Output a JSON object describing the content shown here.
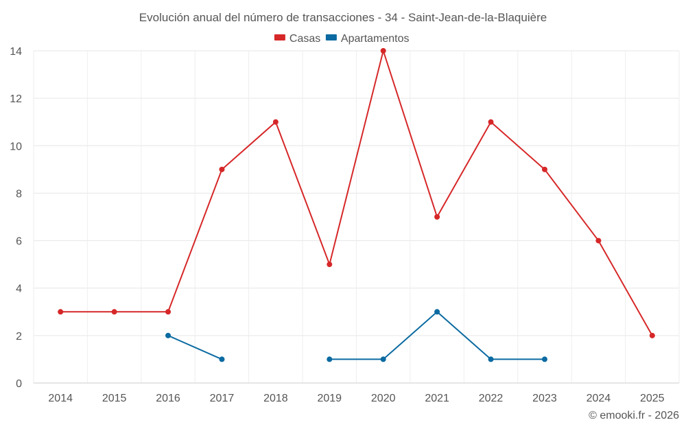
{
  "chart_data": {
    "type": "line",
    "title": "Evolución anual del número de transacciones - 34 - Saint-Jean-de-la-Blaquière",
    "categories": [
      "2014",
      "2015",
      "2016",
      "2017",
      "2018",
      "2019",
      "2020",
      "2021",
      "2022",
      "2023",
      "2024",
      "2025"
    ],
    "series": [
      {
        "name": "Casas",
        "color": "#d62728",
        "values": [
          3,
          3,
          3,
          9,
          11,
          5,
          14,
          7,
          11,
          9,
          6,
          2
        ]
      },
      {
        "name": "Apartamentos",
        "color": "#0a6aa1",
        "values": [
          null,
          null,
          2,
          1,
          null,
          1,
          1,
          3,
          1,
          1,
          null,
          null
        ]
      }
    ],
    "ylim": [
      0,
      14
    ],
    "yticks": [
      "0",
      "2",
      "4",
      "6",
      "8",
      "10",
      "12",
      "14"
    ],
    "xlabel": "",
    "ylabel": "",
    "grid": true,
    "legend_position": "top-center"
  },
  "credit": "© emooki.fr - 2026"
}
